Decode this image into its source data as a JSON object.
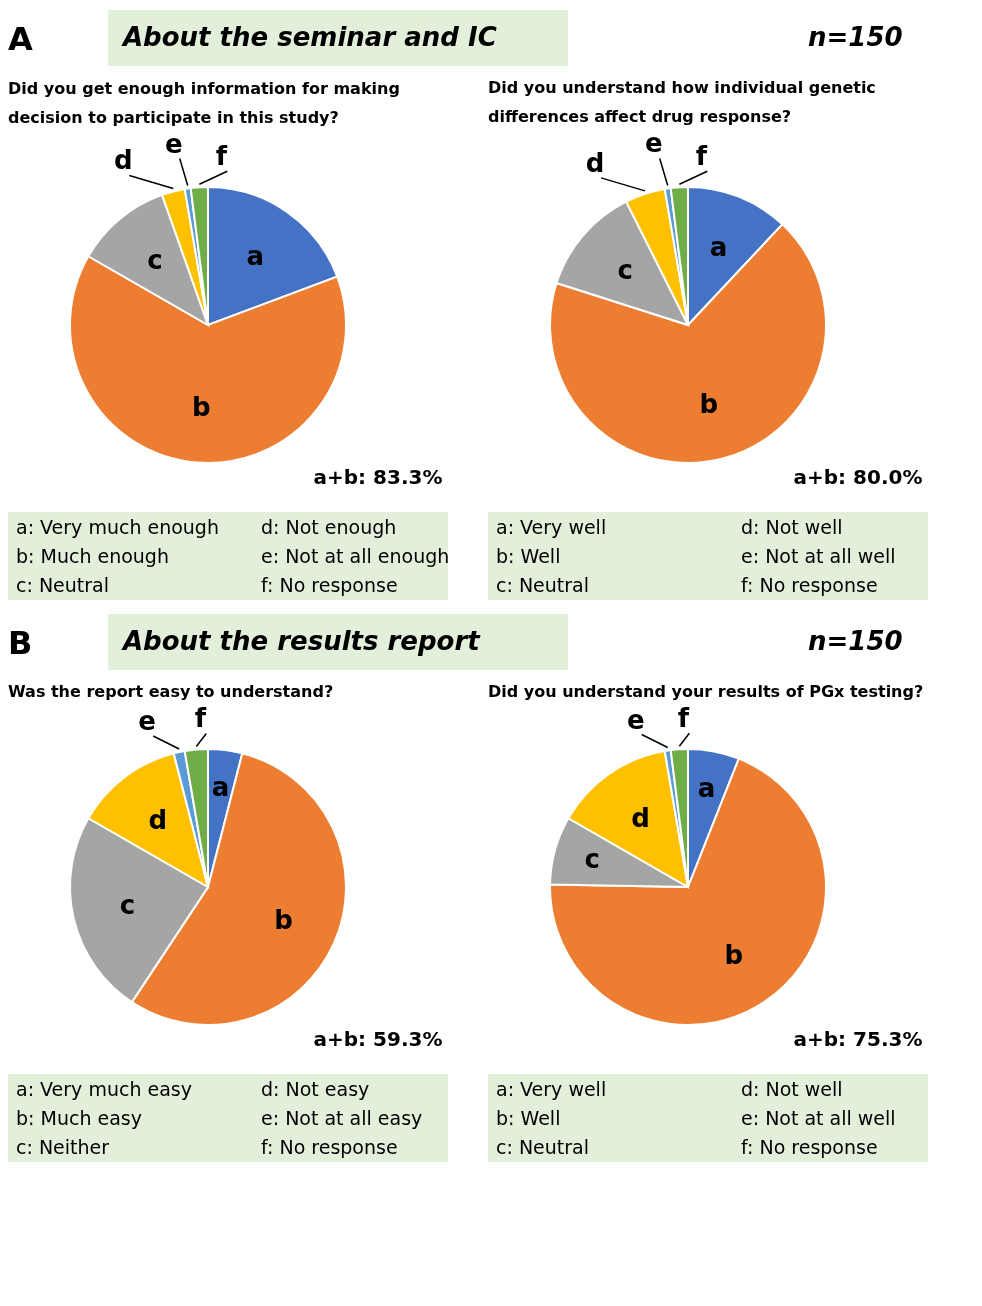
{
  "chart_data": [
    {
      "type": "pie",
      "title": "Did you get enough information for making decision to participate in this study?",
      "categories": [
        "a",
        "b",
        "c",
        "d",
        "e",
        "f"
      ],
      "values": [
        19.3,
        64.0,
        11.3,
        2.7,
        0.7,
        2.0
      ],
      "colors": [
        "#4472c4",
        "#ed7d31",
        "#a5a5a5",
        "#ffc000",
        "#5b9bd5",
        "#70ad47"
      ],
      "annotations": [
        "a+b: 83.3%",
        "a: Very much enough",
        "b: Much enough",
        "c: Neutral",
        "d: Not enough",
        "e: Not at all enough",
        "f: No response",
        "A",
        "About the seminar and IC",
        "n=150"
      ]
    },
    {
      "type": "pie",
      "title": "Did you understand how individual genetic differences affect drug response?",
      "categories": [
        "a",
        "b",
        "c",
        "d",
        "e",
        "f"
      ],
      "values": [
        12.0,
        68.0,
        12.7,
        4.7,
        0.7,
        2.0
      ],
      "colors": [
        "#4472c4",
        "#ed7d31",
        "#a5a5a5",
        "#ffc000",
        "#5b9bd5",
        "#70ad47"
      ],
      "annotations": [
        "a+b: 80.0%",
        "a: Very well",
        "b: Well",
        "c: Neutral",
        "d: Not well",
        "e: Not at all well",
        "f: No response"
      ]
    },
    {
      "type": "pie",
      "title": "Was the report easy to understand?",
      "categories": [
        "a",
        "b",
        "c",
        "d",
        "e",
        "f"
      ],
      "values": [
        4.0,
        55.3,
        24.0,
        12.7,
        1.3,
        2.7
      ],
      "colors": [
        "#4472c4",
        "#ed7d31",
        "#a5a5a5",
        "#ffc000",
        "#5b9bd5",
        "#70ad47"
      ],
      "annotations": [
        "a+b: 59.3%",
        "a: Very much easy",
        "b: Much easy",
        "c: Neither",
        "d: Not easy",
        "e: Not at all easy",
        "f: No response",
        "B",
        "About the results report",
        "n=150"
      ]
    },
    {
      "type": "pie",
      "title": "Did you understand your results of PGx testing?",
      "categories": [
        "a",
        "b",
        "c",
        "d",
        "e",
        "f"
      ],
      "values": [
        6.0,
        69.3,
        8.0,
        14.0,
        0.7,
        2.0
      ],
      "colors": [
        "#4472c4",
        "#ed7d31",
        "#a5a5a5",
        "#ffc000",
        "#5b9bd5",
        "#70ad47"
      ],
      "annotations": [
        "a+b: 75.3%",
        "a: Very well",
        "b: Well",
        "c: Neutral",
        "d: Not well",
        "e: Not at all well",
        "f: No response"
      ]
    }
  ]
}
